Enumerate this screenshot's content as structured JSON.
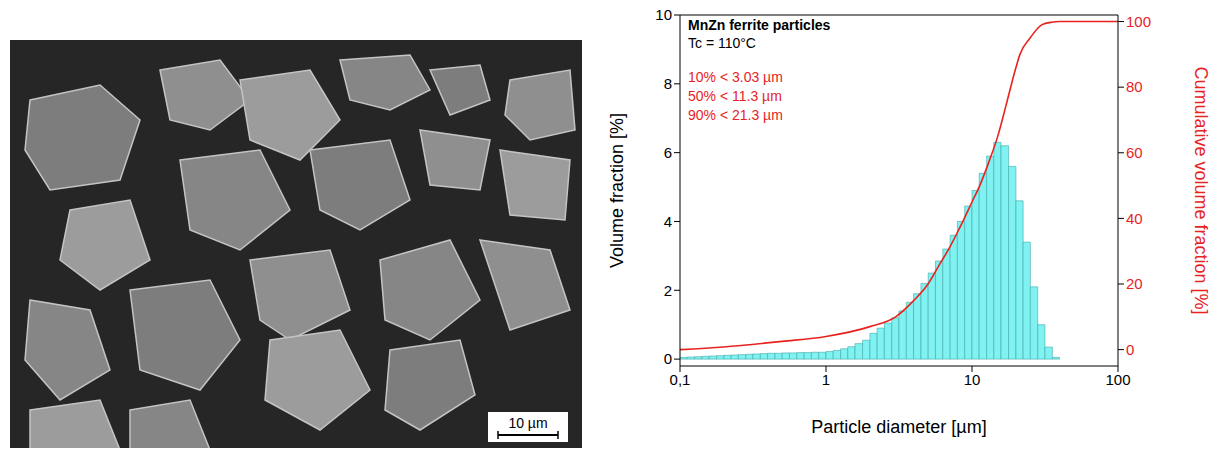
{
  "chart_data": {
    "type": "histogram",
    "title": "MnZn ferrite particles",
    "subtitle": "Tc = 110°C",
    "annotations": [
      "10% < 3.03 µm",
      "50% < 11.3 µm",
      "90% < 21.3 µm"
    ],
    "x_label": "Particle diameter [µm]",
    "y_label": "Volume fraction [%]",
    "y2_label": "Cumulative volume fraction [%]",
    "log": "x",
    "grid": false,
    "xlim": [
      0.1,
      100
    ],
    "xticks": [
      {
        "value": 0.1,
        "label": "0,1"
      },
      1,
      10,
      100
    ],
    "ylim": [
      -0.2,
      10
    ],
    "yticks": [
      0,
      2,
      4,
      6,
      8,
      10
    ],
    "y2lim": [
      -5,
      102
    ],
    "y2ticks": [
      0,
      20,
      40,
      60,
      80,
      100
    ],
    "color": "#80f2f2",
    "bins": [
      0.1,
      0.112,
      0.126,
      0.141,
      0.158,
      0.178,
      0.2,
      0.224,
      0.251,
      0.282,
      0.316,
      0.355,
      0.398,
      0.447,
      0.501,
      0.562,
      0.631,
      0.708,
      0.794,
      0.891,
      1,
      1.12,
      1.26,
      1.41,
      1.58,
      1.78,
      2,
      2.24,
      2.51,
      2.82,
      3.16,
      3.55,
      3.98,
      4.47,
      5.01,
      5.62,
      6.31,
      7.08,
      7.94,
      8.91,
      10,
      11.2,
      12.6,
      14.1,
      15.8,
      17.8,
      20,
      22.4,
      25.1,
      28.2,
      31.6,
      35.5,
      39.8
    ],
    "values": [
      0.05,
      0.06,
      0.07,
      0.08,
      0.09,
      0.1,
      0.11,
      0.12,
      0.13,
      0.14,
      0.15,
      0.16,
      0.17,
      0.17,
      0.18,
      0.18,
      0.19,
      0.19,
      0.2,
      0.2,
      0.22,
      0.25,
      0.3,
      0.36,
      0.45,
      0.55,
      0.75,
      0.9,
      1.05,
      1.2,
      1.4,
      1.65,
      1.9,
      2.2,
      2.5,
      2.85,
      3.2,
      3.6,
      4.0,
      4.45,
      4.9,
      5.4,
      5.9,
      6.3,
      6.2,
      5.6,
      4.6,
      3.4,
      2.1,
      1.0,
      0.35,
      0.05
    ],
    "series": [
      {
        "type": "line",
        "axis": "y2",
        "color": "#e8231f",
        "line_style": "solid",
        "x": [
          0.1,
          0.2,
          0.3,
          0.5,
          1,
          2,
          3,
          4,
          5,
          6,
          7,
          8,
          10,
          11.3,
          13,
          15,
          17,
          20,
          21.3,
          25,
          30,
          35,
          40,
          60,
          100
        ],
        "values": [
          0,
          0.8,
          1.5,
          2.5,
          4,
          7,
          10,
          15,
          20,
          26,
          31,
          36,
          45,
          50,
          57,
          65,
          74,
          86,
          90,
          95,
          99,
          99.8,
          100,
          100,
          100
        ]
      }
    ]
  },
  "micrograph": {
    "scale_bar": "10 µm"
  }
}
